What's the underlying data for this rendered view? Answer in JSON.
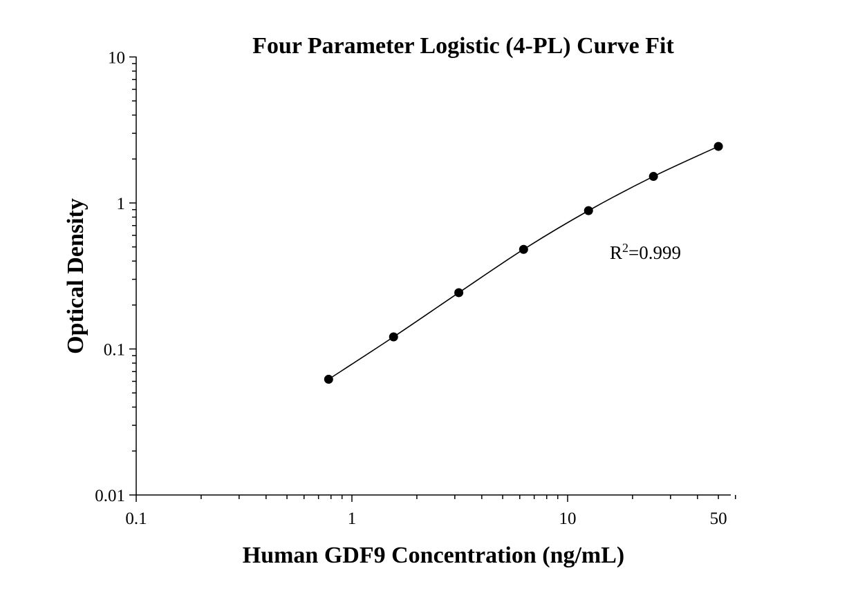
{
  "chart_data": {
    "type": "scatter",
    "title": "Four Parameter Logistic (4-PL) Curve Fit",
    "xlabel": "Human GDF9 Concentration (ng/mL)",
    "ylabel": "Optical Density",
    "x_scale": "log",
    "y_scale": "log",
    "xlim": [
      0.1,
      60
    ],
    "ylim": [
      0.01,
      10
    ],
    "x_ticks": [
      {
        "value": 0.1,
        "label": "0.1"
      },
      {
        "value": 1,
        "label": "1"
      },
      {
        "value": 10,
        "label": "10"
      },
      {
        "value": 50,
        "label": "50"
      }
    ],
    "y_ticks": [
      {
        "value": 0.01,
        "label": "0.01"
      },
      {
        "value": 0.1,
        "label": "0.1"
      },
      {
        "value": 1,
        "label": "1"
      },
      {
        "value": 10,
        "label": "10"
      }
    ],
    "grid": false,
    "legend": "none",
    "series": [
      {
        "type": "scatter",
        "x": [
          0.78,
          1.56,
          3.13,
          6.25,
          12.5,
          25,
          50
        ],
        "y": [
          0.062,
          0.121,
          0.243,
          0.481,
          0.886,
          1.52,
          2.44
        ],
        "color": "#000000"
      },
      {
        "type": "line",
        "fit": "4PL",
        "x": [
          0.78,
          1.56,
          3.13,
          6.25,
          12.5,
          25,
          50
        ],
        "y": [
          0.062,
          0.121,
          0.243,
          0.481,
          0.886,
          1.52,
          2.44
        ],
        "color": "#000000"
      }
    ],
    "annotations": [
      {
        "base": "R",
        "sup": "2",
        "rest": "=0.999"
      }
    ]
  }
}
